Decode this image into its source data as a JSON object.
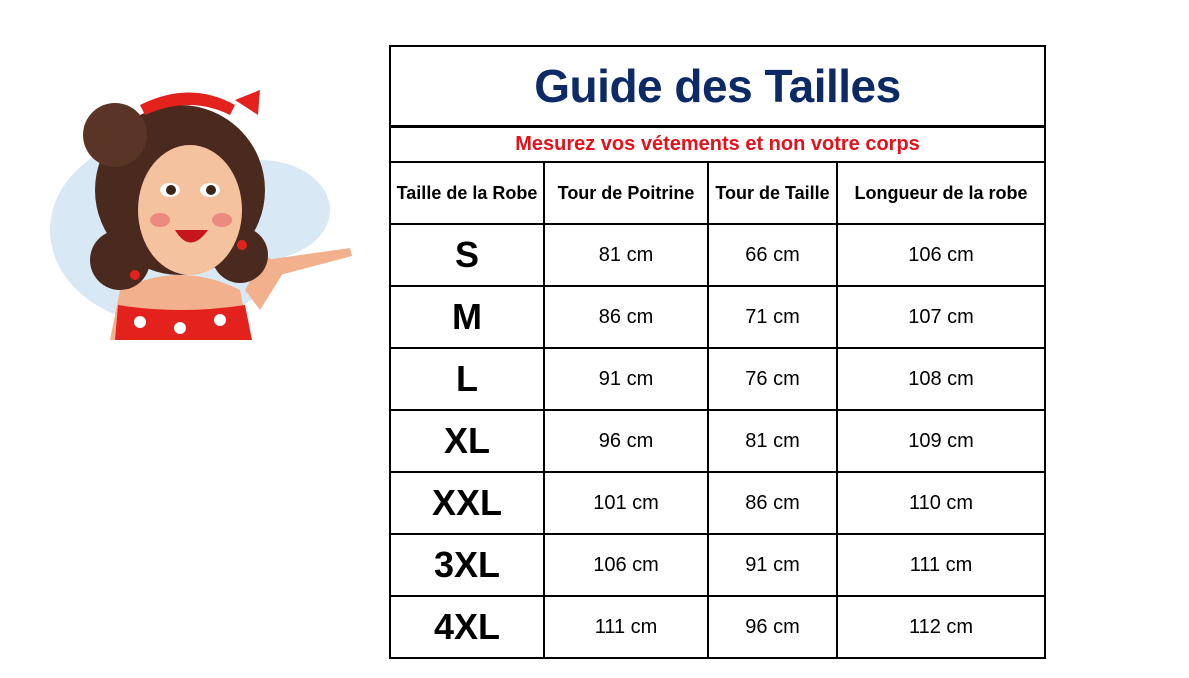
{
  "colors": {
    "title": "#0b2a66",
    "subtitle": "#e3121b"
  },
  "illustration": {
    "icon": "pinup-woman-illustration"
  },
  "table": {
    "title": "Guide des Tailles",
    "subtitle": "Mesurez vos vétements et non votre corps",
    "headers": [
      "Taille de la Robe",
      "Tour de Poitrine",
      "Tour de Taille",
      "Longueur de la robe"
    ],
    "rows": [
      [
        "S",
        "81 cm",
        "66 cm",
        "106 cm"
      ],
      [
        "M",
        "86 cm",
        "71 cm",
        "107 cm"
      ],
      [
        "L",
        "91 cm",
        "76 cm",
        "108 cm"
      ],
      [
        "XL",
        "96 cm",
        "81 cm",
        "109 cm"
      ],
      [
        "XXL",
        "101 cm",
        "86 cm",
        "110 cm"
      ],
      [
        "3XL",
        "106 cm",
        "91 cm",
        "111 cm"
      ],
      [
        "4XL",
        "111 cm",
        "96 cm",
        "112 cm"
      ]
    ]
  }
}
